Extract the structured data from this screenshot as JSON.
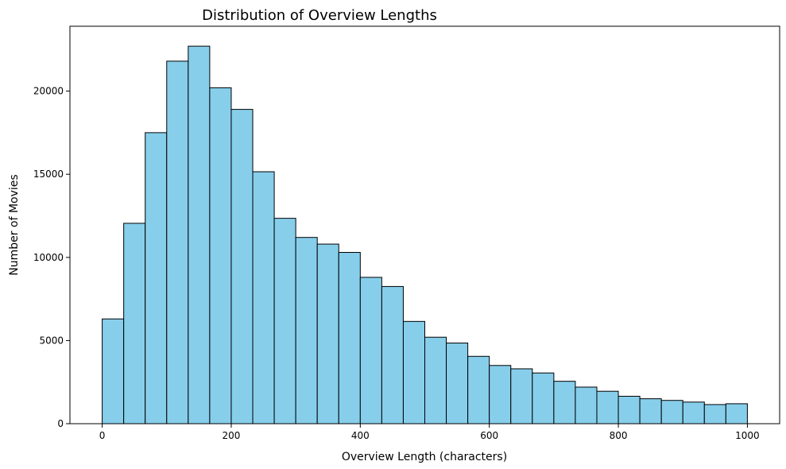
{
  "chart_data": {
    "type": "bar",
    "title": "Distribution of Overview Lengths",
    "xlabel": "Overview Length (characters)",
    "ylabel": "Number of Movies",
    "xlim": [
      -50,
      1050
    ],
    "ylim": [
      0,
      23900
    ],
    "xticks": [
      0,
      200,
      400,
      600,
      800,
      1000
    ],
    "yticks": [
      0,
      5000,
      10000,
      15000,
      20000
    ],
    "bin_edges": [
      0,
      33.33,
      66.67,
      100,
      133.33,
      166.67,
      200,
      233.33,
      266.67,
      300,
      333.33,
      366.67,
      400,
      433.33,
      466.67,
      500,
      533.33,
      566.67,
      600,
      633.33,
      666.67,
      700,
      733.33,
      766.67,
      800,
      833.33,
      866.67,
      900,
      933.33,
      966.67,
      1000
    ],
    "values": [
      6300,
      12050,
      17500,
      21800,
      22700,
      20200,
      18900,
      15150,
      12350,
      11200,
      10800,
      10300,
      8800,
      8250,
      6150,
      5200,
      4850,
      4050,
      3500,
      3300,
      3050,
      2550,
      2200,
      1950,
      1650,
      1500,
      1400,
      1300,
      1150,
      1200
    ],
    "bar_color": "#87CEEB",
    "edge_color": "#000000",
    "grid": false
  }
}
